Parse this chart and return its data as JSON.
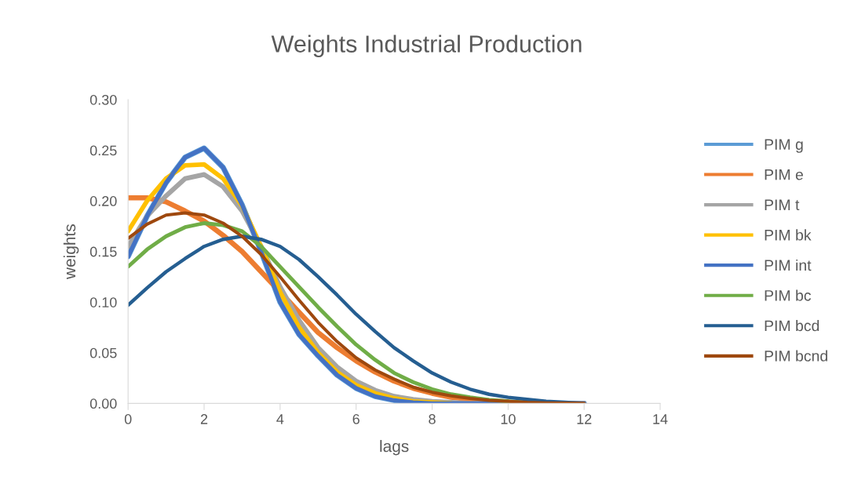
{
  "chart_data": {
    "type": "line",
    "title": "Weights Industrial Production",
    "xlabel": "lags",
    "ylabel": "weights",
    "x": [
      0,
      0.5,
      1,
      1.5,
      2,
      2.5,
      3,
      3.5,
      4,
      4.5,
      5,
      5.5,
      6,
      6.5,
      7,
      7.5,
      8,
      8.5,
      9,
      9.5,
      10,
      10.5,
      11,
      11.5,
      12
    ],
    "xlim": [
      0,
      14
    ],
    "xticks": [
      0,
      2,
      4,
      6,
      8,
      10,
      12,
      14
    ],
    "ylim": [
      0,
      0.3
    ],
    "yticks": [
      {
        "value": 0,
        "label": "0.00"
      },
      {
        "value": 0.05,
        "label": "0.05"
      },
      {
        "value": 0.1,
        "label": "0.10"
      },
      {
        "value": 0.15,
        "label": "0.15"
      },
      {
        "value": 0.2,
        "label": "0.20"
      },
      {
        "value": 0.25,
        "label": "0.25"
      },
      {
        "value": 0.3,
        "label": "0.30"
      }
    ],
    "grid": false,
    "legend": "right",
    "marker": "none",
    "line_style": "solid",
    "series": [
      {
        "name": "PIM g",
        "color": "#5b9bd5",
        "values": [
          0.145,
          0.185,
          0.218,
          0.243,
          0.252,
          0.233,
          0.196,
          0.15,
          0.1,
          0.068,
          0.047,
          0.028,
          0.015,
          0.007,
          0.003,
          0.001,
          0,
          0,
          0,
          0,
          0,
          0,
          0,
          0,
          0
        ]
      },
      {
        "name": "PIM e",
        "color": "#ed7d31",
        "values": [
          0.203,
          0.203,
          0.199,
          0.19,
          0.18,
          0.166,
          0.15,
          0.13,
          0.11,
          0.09,
          0.07,
          0.055,
          0.042,
          0.031,
          0.022,
          0.015,
          0.01,
          0.006,
          0.004,
          0.0025,
          0.0015,
          null,
          null,
          null,
          null
        ]
      },
      {
        "name": "PIM t",
        "color": "#a5a5a5",
        "values": [
          0.155,
          0.185,
          0.205,
          0.222,
          0.226,
          0.214,
          0.19,
          0.155,
          0.115,
          0.082,
          0.055,
          0.036,
          0.022,
          0.013,
          0.007,
          0.004,
          0.002,
          0.001,
          0,
          0,
          0,
          0,
          0,
          0,
          0
        ]
      },
      {
        "name": "PIM bk",
        "color": "#ffc000",
        "values": [
          0.17,
          0.2,
          0.222,
          0.235,
          0.236,
          0.222,
          0.195,
          0.155,
          0.11,
          0.075,
          0.05,
          0.031,
          0.018,
          0.01,
          0.005,
          0.002,
          0.001,
          0,
          null,
          null,
          null,
          null,
          null,
          null,
          null
        ]
      },
      {
        "name": "PIM int",
        "color": "#4472c4",
        "values": [
          0.145,
          0.185,
          0.218,
          0.243,
          0.252,
          0.233,
          0.196,
          0.15,
          0.1,
          0.068,
          0.047,
          0.028,
          0.015,
          0.007,
          0.003,
          0.001,
          0,
          0,
          0,
          0,
          0,
          0,
          0,
          0,
          0
        ]
      },
      {
        "name": "PIM bc",
        "color": "#70ad47",
        "values": [
          0.135,
          0.152,
          0.165,
          0.174,
          0.178,
          0.176,
          0.17,
          0.155,
          0.135,
          0.115,
          0.095,
          0.076,
          0.058,
          0.043,
          0.03,
          0.021,
          0.014,
          0.009,
          0.006,
          0.0035,
          0.002,
          0.001,
          null,
          null,
          null
        ]
      },
      {
        "name": "PIM bcd",
        "color": "#255e91",
        "values": [
          0.097,
          0.114,
          0.13,
          0.143,
          0.155,
          0.162,
          0.165,
          0.162,
          0.155,
          0.142,
          0.125,
          0.107,
          0.088,
          0.071,
          0.055,
          0.042,
          0.03,
          0.021,
          0.014,
          0.009,
          0.006,
          0.004,
          0.002,
          0.001,
          0
        ]
      },
      {
        "name": "PIM bcnd",
        "color": "#9e480e",
        "values": [
          0.163,
          0.177,
          0.186,
          0.188,
          0.186,
          0.178,
          0.165,
          0.147,
          0.125,
          0.102,
          0.08,
          0.061,
          0.045,
          0.033,
          0.024,
          0.016,
          0.011,
          0.0075,
          0.005,
          0.003,
          0.002,
          0.001,
          0.0005,
          0.0002,
          0
        ]
      }
    ]
  }
}
